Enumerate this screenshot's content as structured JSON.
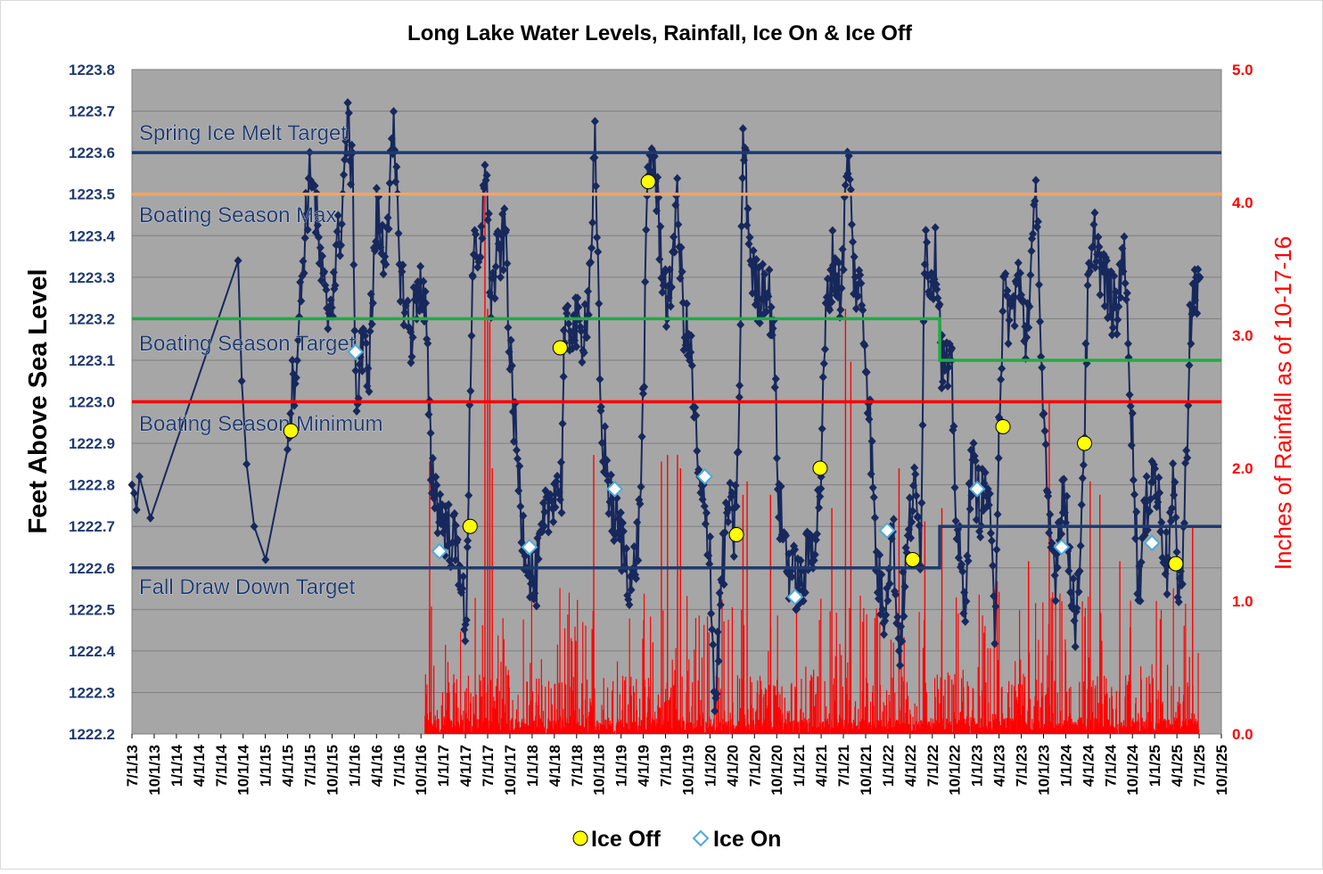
{
  "chart_data": {
    "type": "line",
    "title": "Long Lake Water Levels, Rainfall, Ice On & Ice Off",
    "ylabel": "Feet Above Sea Level",
    "y2label": "Inches of Rainfall as of 10-17-16",
    "ylim": [
      1222.2,
      1223.8
    ],
    "y2lim": [
      0.0,
      5.0
    ],
    "xlim": [
      "2013-07-01",
      "2025-10-01"
    ],
    "grid": true,
    "legend_position": "bottom",
    "x_ticks": [
      "7/1/13",
      "10/1/13",
      "1/1/14",
      "4/1/14",
      "7/1/14",
      "10/1/14",
      "1/1/15",
      "4/1/15",
      "7/1/15",
      "10/1/15",
      "1/1/16",
      "4/1/16",
      "7/1/16",
      "10/1/16",
      "1/1/17",
      "4/1/17",
      "7/1/17",
      "10/1/17",
      "1/1/18",
      "4/1/18",
      "7/1/18",
      "10/1/18",
      "1/1/19",
      "4/1/19",
      "7/1/19",
      "10/1/19",
      "1/1/20",
      "4/1/20",
      "7/1/20",
      "10/1/20",
      "1/1/21",
      "4/1/21",
      "7/1/21",
      "10/1/21",
      "1/1/22",
      "4/1/22",
      "7/1/22",
      "10/1/22",
      "1/1/23",
      "4/1/23",
      "7/1/23",
      "10/1/23",
      "1/1/24",
      "4/1/24",
      "7/1/24",
      "10/1/24",
      "1/1/25",
      "4/1/25",
      "7/1/25",
      "10/1/25"
    ],
    "y_ticks": [
      "1222.2",
      "1222.3",
      "1222.4",
      "1222.5",
      "1222.6",
      "1222.7",
      "1222.8",
      "1222.9",
      "1223.0",
      "1223.1",
      "1223.2",
      "1223.3",
      "1223.4",
      "1223.5",
      "1223.6",
      "1223.7",
      "1223.8"
    ],
    "y2_ticks": [
      "0.0",
      "1.0",
      "2.0",
      "3.0",
      "4.0",
      "5.0"
    ],
    "reference_lines": [
      {
        "label": "Spring Ice Melt Target",
        "color": "#1f3a6e",
        "segments": [
          {
            "from": "2013-07-01",
            "to": "2025-10-01",
            "value": 1223.6
          }
        ]
      },
      {
        "label": "Boating Season Max",
        "color": "#f4a460",
        "segments": [
          {
            "from": "2013-07-01",
            "to": "2025-10-01",
            "value": 1223.5
          }
        ]
      },
      {
        "label": "Boating Season Target",
        "color": "#22aa44",
        "segments": [
          {
            "from": "2013-07-01",
            "to": "2022-08-01",
            "value": 1223.2
          },
          {
            "from": "2022-08-01",
            "to": "2025-10-01",
            "value": 1223.1
          }
        ]
      },
      {
        "label": "Boating Season Minimum",
        "color": "#ff0000",
        "segments": [
          {
            "from": "2013-07-01",
            "to": "2025-10-01",
            "value": 1223.0
          }
        ]
      },
      {
        "label": "Fall Draw Down Target",
        "color": "#1f3a6e",
        "segments": [
          {
            "from": "2013-07-01",
            "to": "2022-08-01",
            "value": 1222.6
          },
          {
            "from": "2022-08-01",
            "to": "2025-10-01",
            "value": 1222.7
          }
        ]
      }
    ],
    "water_level_anchors": [
      [
        "2013-07-01",
        1222.8
      ],
      [
        "2013-07-10",
        1222.78
      ],
      [
        "2013-07-20",
        1222.74
      ],
      [
        "2013-08-01",
        1222.82
      ],
      [
        "2013-09-15",
        1222.72
      ],
      [
        "2014-09-10",
        1223.34
      ],
      [
        "2014-09-25",
        1223.05
      ],
      [
        "2014-10-15",
        1222.85
      ],
      [
        "2014-11-15",
        1222.7
      ],
      [
        "2015-01-01",
        1222.62
      ],
      [
        "2015-04-01",
        1222.93
      ],
      [
        "2015-05-15",
        1223.15
      ],
      [
        "2015-06-15",
        1223.45
      ],
      [
        "2015-07-10",
        1223.57
      ],
      [
        "2015-08-10",
        1223.35
      ],
      [
        "2015-09-10",
        1223.2
      ],
      [
        "2015-10-10",
        1223.3
      ],
      [
        "2015-11-10",
        1223.45
      ],
      [
        "2015-12-05",
        1223.7
      ],
      [
        "2015-12-25",
        1223.52
      ],
      [
        "2016-01-10",
        1222.96
      ],
      [
        "2016-01-25",
        1223.12
      ],
      [
        "2016-03-01",
        1223.1
      ],
      [
        "2016-04-01",
        1223.45
      ],
      [
        "2016-05-01",
        1223.35
      ],
      [
        "2016-06-10",
        1223.62
      ],
      [
        "2016-07-10",
        1223.3
      ],
      [
        "2016-08-20",
        1223.15
      ],
      [
        "2016-09-20",
        1223.3
      ],
      [
        "2016-10-20",
        1223.2
      ],
      [
        "2016-11-10",
        1222.85
      ],
      [
        "2016-12-10",
        1222.75
      ],
      [
        "2017-01-10",
        1222.7
      ],
      [
        "2017-02-20",
        1222.65
      ],
      [
        "2017-03-15",
        1222.6
      ],
      [
        "2017-04-01",
        1222.4
      ],
      [
        "2017-04-10",
        1222.7
      ],
      [
        "2017-05-01",
        1223.35
      ],
      [
        "2017-06-01",
        1223.3
      ],
      [
        "2017-06-20",
        1223.62
      ],
      [
        "2017-07-15",
        1223.25
      ],
      [
        "2017-08-15",
        1223.35
      ],
      [
        "2017-09-15",
        1223.4
      ],
      [
        "2017-10-01",
        1223.1
      ],
      [
        "2017-10-20",
        1222.95
      ],
      [
        "2017-11-20",
        1222.7
      ],
      [
        "2018-01-10",
        1222.55
      ],
      [
        "2018-02-20",
        1222.7
      ],
      [
        "2018-04-01",
        1222.8
      ],
      [
        "2018-05-01",
        1222.8
      ],
      [
        "2018-05-10",
        1223.13
      ],
      [
        "2018-06-15",
        1223.2
      ],
      [
        "2018-07-20",
        1223.15
      ],
      [
        "2018-08-20",
        1223.25
      ],
      [
        "2018-09-15",
        1223.6
      ],
      [
        "2018-10-10",
        1222.95
      ],
      [
        "2018-11-20",
        1222.75
      ],
      [
        "2019-01-10",
        1222.65
      ],
      [
        "2019-02-15",
        1222.55
      ],
      [
        "2019-03-15",
        1222.7
      ],
      [
        "2019-04-01",
        1223.0
      ],
      [
        "2019-04-20",
        1223.53
      ],
      [
        "2019-05-10",
        1223.62
      ],
      [
        "2019-06-15",
        1223.35
      ],
      [
        "2019-07-15",
        1223.2
      ],
      [
        "2019-08-15",
        1223.5
      ],
      [
        "2019-09-15",
        1223.2
      ],
      [
        "2019-10-15",
        1223.1
      ],
      [
        "2019-11-15",
        1222.8
      ],
      [
        "2020-01-01",
        1222.65
      ],
      [
        "2020-01-20",
        1222.25
      ],
      [
        "2020-02-15",
        1222.55
      ],
      [
        "2020-03-15",
        1222.75
      ],
      [
        "2020-04-10",
        1222.68
      ],
      [
        "2020-05-01",
        1223.0
      ],
      [
        "2020-05-15",
        1223.65
      ],
      [
        "2020-06-15",
        1223.35
      ],
      [
        "2020-07-15",
        1223.25
      ],
      [
        "2020-08-15",
        1223.3
      ],
      [
        "2020-09-15",
        1223.2
      ],
      [
        "2020-10-10",
        1222.75
      ],
      [
        "2020-11-20",
        1222.6
      ],
      [
        "2021-01-10",
        1222.55
      ],
      [
        "2021-02-15",
        1222.65
      ],
      [
        "2021-03-15",
        1222.7
      ],
      [
        "2021-04-01",
        1222.84
      ],
      [
        "2021-04-20",
        1223.2
      ],
      [
        "2021-05-20",
        1223.35
      ],
      [
        "2021-06-20",
        1223.25
      ],
      [
        "2021-07-20",
        1223.6
      ],
      [
        "2021-08-15",
        1223.3
      ],
      [
        "2021-09-15",
        1223.25
      ],
      [
        "2021-10-15",
        1223.0
      ],
      [
        "2021-11-15",
        1222.6
      ],
      [
        "2021-12-15",
        1222.5
      ],
      [
        "2022-01-20",
        1222.7
      ],
      [
        "2022-02-15",
        1222.4
      ],
      [
        "2022-03-15",
        1222.6
      ],
      [
        "2022-04-15",
        1222.8
      ],
      [
        "2022-05-15",
        1222.65
      ],
      [
        "2022-06-01",
        1223.4
      ],
      [
        "2022-06-20",
        1223.3
      ],
      [
        "2022-07-20",
        1223.35
      ],
      [
        "2022-08-10",
        1223.1
      ],
      [
        "2022-09-20",
        1223.05
      ],
      [
        "2022-10-10",
        1222.7
      ],
      [
        "2022-11-10",
        1222.5
      ],
      [
        "2022-12-10",
        1222.85
      ],
      [
        "2023-01-15",
        1222.75
      ],
      [
        "2023-02-15",
        1222.8
      ],
      [
        "2023-03-15",
        1222.45
      ],
      [
        "2023-04-01",
        1222.95
      ],
      [
        "2023-04-20",
        1223.25
      ],
      [
        "2023-05-20",
        1223.2
      ],
      [
        "2023-06-20",
        1223.3
      ],
      [
        "2023-07-20",
        1223.15
      ],
      [
        "2023-08-15",
        1223.35
      ],
      [
        "2023-09-05",
        1223.5
      ],
      [
        "2023-09-25",
        1223.05
      ],
      [
        "2023-10-20",
        1222.7
      ],
      [
        "2023-11-20",
        1222.6
      ],
      [
        "2023-12-20",
        1222.8
      ],
      [
        "2024-01-20",
        1222.6
      ],
      [
        "2024-02-15",
        1222.45
      ],
      [
        "2024-03-15",
        1222.9
      ],
      [
        "2024-04-01",
        1223.25
      ],
      [
        "2024-05-01",
        1223.4
      ],
      [
        "2024-06-01",
        1223.3
      ],
      [
        "2024-07-01",
        1223.25
      ],
      [
        "2024-08-01",
        1223.2
      ],
      [
        "2024-08-20",
        1223.4
      ],
      [
        "2024-09-15",
        1223.15
      ],
      [
        "2024-10-05",
        1222.85
      ],
      [
        "2024-10-25",
        1222.55
      ],
      [
        "2024-11-20",
        1222.7
      ],
      [
        "2024-12-20",
        1222.85
      ],
      [
        "2025-01-20",
        1222.75
      ],
      [
        "2025-02-20",
        1222.6
      ],
      [
        "2025-03-20",
        1222.8
      ],
      [
        "2025-04-01",
        1222.6
      ],
      [
        "2025-04-20",
        1222.55
      ],
      [
        "2025-05-10",
        1222.85
      ],
      [
        "2025-05-25",
        1223.2
      ],
      [
        "2025-06-15",
        1223.25
      ],
      [
        "2025-07-05",
        1223.3
      ]
    ],
    "ice_off": [
      [
        "2015-04-15",
        1222.93
      ],
      [
        "2017-04-20",
        1222.7
      ],
      [
        "2018-04-25",
        1223.13
      ],
      [
        "2019-04-22",
        1223.53
      ],
      [
        "2020-04-18",
        1222.68
      ],
      [
        "2021-03-28",
        1222.84
      ],
      [
        "2022-04-12",
        1222.62
      ],
      [
        "2023-04-18",
        1222.94
      ],
      [
        "2024-03-18",
        1222.9
      ],
      [
        "2025-03-28",
        1222.61
      ]
    ],
    "ice_on": [
      [
        "2016-01-05",
        1223.12
      ],
      [
        "2016-12-15",
        1222.64
      ],
      [
        "2017-12-20",
        1222.65
      ],
      [
        "2018-12-05",
        1222.79
      ],
      [
        "2019-12-10",
        1222.82
      ],
      [
        "2020-12-15",
        1222.53
      ],
      [
        "2021-12-28",
        1222.69
      ],
      [
        "2023-01-02",
        1222.79
      ],
      [
        "2023-12-15",
        1222.65
      ],
      [
        "2024-12-20",
        1222.66
      ]
    ],
    "rainfall": {
      "start": "2016-10-17",
      "end": "2025-06-30",
      "peaks": [
        [
          "2016-11-05",
          2.05
        ],
        [
          "2017-06-20",
          4.2
        ],
        [
          "2017-07-01",
          3.2
        ],
        [
          "2017-07-10",
          3.1
        ],
        [
          "2017-07-20",
          2.0
        ],
        [
          "2018-09-10",
          2.1
        ],
        [
          "2019-06-15",
          2.05
        ],
        [
          "2019-07-10",
          2.1
        ],
        [
          "2019-08-20",
          2.1
        ],
        [
          "2019-09-01",
          2.0
        ],
        [
          "2020-05-15",
          1.8
        ],
        [
          "2020-06-01",
          1.9
        ],
        [
          "2020-09-05",
          1.8
        ],
        [
          "2021-05-15",
          1.7
        ],
        [
          "2021-07-10",
          3.2
        ],
        [
          "2021-08-01",
          2.8
        ],
        [
          "2022-02-15",
          2.0
        ],
        [
          "2022-06-01",
          1.6
        ],
        [
          "2022-08-10",
          1.7
        ],
        [
          "2023-03-25",
          1.15
        ],
        [
          "2023-08-01",
          1.3
        ],
        [
          "2023-10-25",
          2.5
        ],
        [
          "2024-04-10",
          1.9
        ],
        [
          "2024-05-20",
          1.8
        ],
        [
          "2024-08-10",
          1.3
        ],
        [
          "2025-06-05",
          1.55
        ]
      ]
    },
    "legend": [
      {
        "label": "Ice Off",
        "marker": "circle",
        "color": "#ffff00"
      },
      {
        "label": "Ice On",
        "marker": "diamond",
        "color": "#ffffff"
      }
    ],
    "colors": {
      "plot_bg": "#a6a6a6",
      "level_series": "#17285c",
      "rainfall": "#ff0000",
      "left_axis_text": "#1f3a6e",
      "right_axis_text": "#ff0000",
      "ice_on_stroke": "#4fa9d8"
    }
  }
}
